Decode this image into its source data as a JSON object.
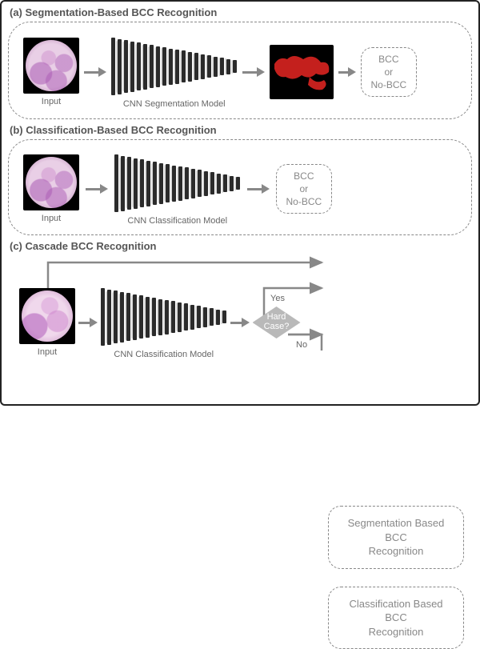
{
  "colors": {
    "frame_border": "#222222",
    "panel_border": "#888888",
    "text_muted": "#666666",
    "heading": "#555555",
    "arrow": "#888888",
    "diamond_fill": "#b9b9b9",
    "diamond_text": "#ffffff",
    "histology_bg": "#000000",
    "seg_bg": "#000000",
    "seg_shape": "#c4201d"
  },
  "fonts": {
    "title_size_pt": 10,
    "caption_size_pt": 8.5,
    "result_size_pt": 9
  },
  "panel_a": {
    "title": "(a) Segmentation-Based BCC Recognition",
    "input_label": "Input",
    "cnn_label": "CNN Segmentation Model",
    "result_line1": "BCC",
    "result_line2": "or",
    "result_line3": "No-BCC"
  },
  "panel_b": {
    "title": "(b) Classification-Based BCC Recognition",
    "input_label": "Input",
    "cnn_label": "CNN Classification Model",
    "result_line1": "BCC",
    "result_line2": "or",
    "result_line3": "No-BCC"
  },
  "panel_c": {
    "title": "(c) Cascade BCC Recognition",
    "input_label": "Input",
    "cnn_label": "CNN Classification Model",
    "decision_line1": "Hard",
    "decision_line2": "Case?",
    "yes_label": "Yes",
    "no_label": "No",
    "branch_top_line1": "Segmentation Based BCC",
    "branch_top_line2": "Recognition",
    "branch_bot_line1": "Classification Based BCC",
    "branch_bot_line2": "Recognition"
  },
  "cnn_bars": {
    "count": 20,
    "min_h": 16,
    "max_h": 72,
    "dark_w": 5,
    "light_w": 2,
    "gap": 0.5,
    "dark_color": "#2b2b2b",
    "light_color": "#d9d9d9"
  }
}
